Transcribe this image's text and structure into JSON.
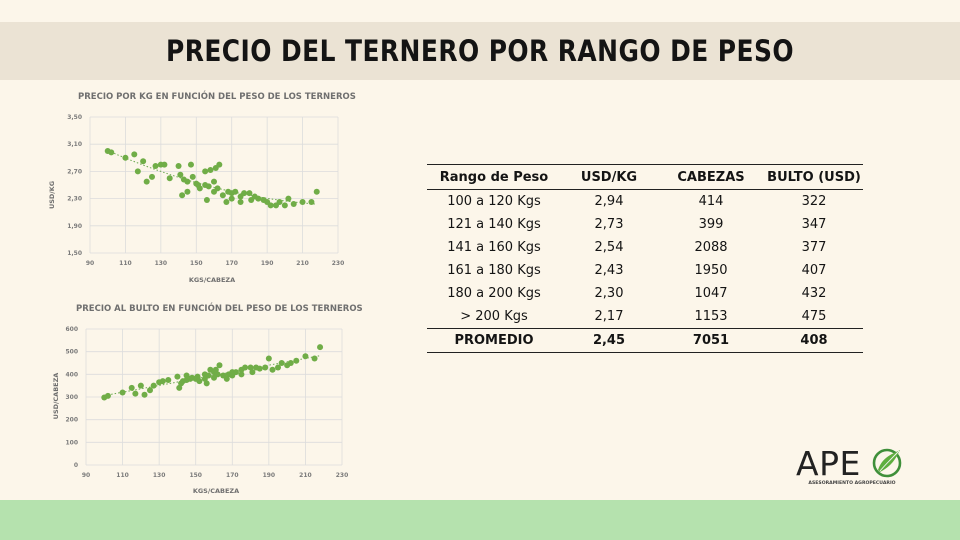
{
  "title": "PRECIO DEL TERNERO POR RANGO DE PESO",
  "colors": {
    "points": "#70ad47",
    "trend": "#6aa84f",
    "footer": "#b5e2ae",
    "title_band": "#ebe3d4",
    "background": "#fcf6ea"
  },
  "chart_data": [
    {
      "type": "scatter",
      "title": "PRECIO POR KG EN FUNCIÓN DEL PESO DE LOS TERNEROS",
      "xlabel": "KGS/CABEZA",
      "ylabel": "USD/KG",
      "xlim": [
        90,
        230
      ],
      "ylim": [
        1.5,
        3.5
      ],
      "x_ticks": [
        "90",
        "110",
        "130",
        "150",
        "170",
        "190",
        "210",
        "230"
      ],
      "y_ticks": [
        "3,50",
        "3,10",
        "2,70",
        "2,30",
        "1,90",
        "1,50"
      ],
      "grid": true,
      "trendline": "polynomial",
      "x": [
        100,
        102,
        110,
        115,
        117,
        120,
        122,
        125,
        127,
        130,
        132,
        135,
        140,
        141,
        142,
        143,
        145,
        145,
        147,
        148,
        150,
        151,
        152,
        155,
        155,
        156,
        157,
        158,
        160,
        160,
        161,
        162,
        163,
        165,
        167,
        168,
        170,
        170,
        172,
        175,
        175,
        177,
        180,
        181,
        183,
        185,
        188,
        190,
        192,
        195,
        197,
        200,
        202,
        205,
        210,
        215,
        218
      ],
      "y": [
        3.0,
        2.98,
        2.9,
        2.95,
        2.7,
        2.85,
        2.55,
        2.62,
        2.78,
        2.8,
        2.8,
        2.6,
        2.78,
        2.65,
        2.35,
        2.58,
        2.55,
        2.4,
        2.8,
        2.62,
        2.52,
        2.5,
        2.45,
        2.7,
        2.5,
        2.28,
        2.48,
        2.72,
        2.55,
        2.4,
        2.75,
        2.45,
        2.8,
        2.35,
        2.25,
        2.4,
        2.38,
        2.3,
        2.4,
        2.33,
        2.25,
        2.38,
        2.38,
        2.28,
        2.33,
        2.3,
        2.28,
        2.25,
        2.2,
        2.2,
        2.25,
        2.2,
        2.3,
        2.22,
        2.25,
        2.25,
        2.4
      ]
    },
    {
      "type": "scatter",
      "title": "PRECIO AL BULTO EN FUNCIÓN DEL PESO DE LOS TERNEROS",
      "xlabel": "KGS/CABEZA",
      "ylabel": "USD/CABEZA",
      "xlim": [
        90,
        230
      ],
      "ylim": [
        0,
        600
      ],
      "x_ticks": [
        "90",
        "110",
        "130",
        "150",
        "170",
        "190",
        "210",
        "230"
      ],
      "y_ticks": [
        "600",
        "500",
        "400",
        "300",
        "200",
        "100",
        "0"
      ],
      "grid": true,
      "trendline": "linear",
      "x": [
        100,
        102,
        110,
        115,
        117,
        120,
        122,
        125,
        127,
        130,
        132,
        135,
        140,
        141,
        142,
        143,
        145,
        145,
        147,
        148,
        150,
        151,
        152,
        155,
        155,
        156,
        157,
        158,
        160,
        160,
        161,
        162,
        163,
        165,
        167,
        168,
        170,
        170,
        172,
        175,
        175,
        177,
        180,
        181,
        183,
        185,
        188,
        190,
        192,
        195,
        197,
        200,
        202,
        205,
        210,
        215,
        218
      ],
      "y": [
        298,
        305,
        320,
        340,
        315,
        350,
        310,
        330,
        350,
        365,
        370,
        375,
        390,
        340,
        360,
        370,
        375,
        395,
        380,
        385,
        380,
        390,
        370,
        400,
        380,
        360,
        395,
        420,
        410,
        385,
        420,
        400,
        440,
        395,
        380,
        400,
        410,
        395,
        410,
        420,
        400,
        430,
        430,
        410,
        430,
        425,
        430,
        470,
        420,
        430,
        450,
        440,
        450,
        460,
        480,
        470,
        520
      ]
    }
  ],
  "table": {
    "headers": [
      "Rango de Peso",
      "USD/KG",
      "CABEZAS",
      "BULTO (USD)"
    ],
    "rows": [
      [
        "100 a 120 Kgs",
        "2,94",
        "414",
        "322"
      ],
      [
        "121 a 140 Kgs",
        "2,73",
        "399",
        "347"
      ],
      [
        "141 a 160 Kgs",
        "2,54",
        "2088",
        "377"
      ],
      [
        "161 a 180 Kgs",
        "2,43",
        "1950",
        "407"
      ],
      [
        "180 a 200 Kgs",
        "2,30",
        "1047",
        "432"
      ],
      [
        "> 200 Kgs",
        "2,17",
        "1153",
        "475"
      ]
    ],
    "average": [
      "PROMEDIO",
      "2,45",
      "7051",
      "408"
    ]
  },
  "logo": {
    "word": "APE",
    "tagline": "ASESORAMIENTO AGROPECUARIO"
  }
}
